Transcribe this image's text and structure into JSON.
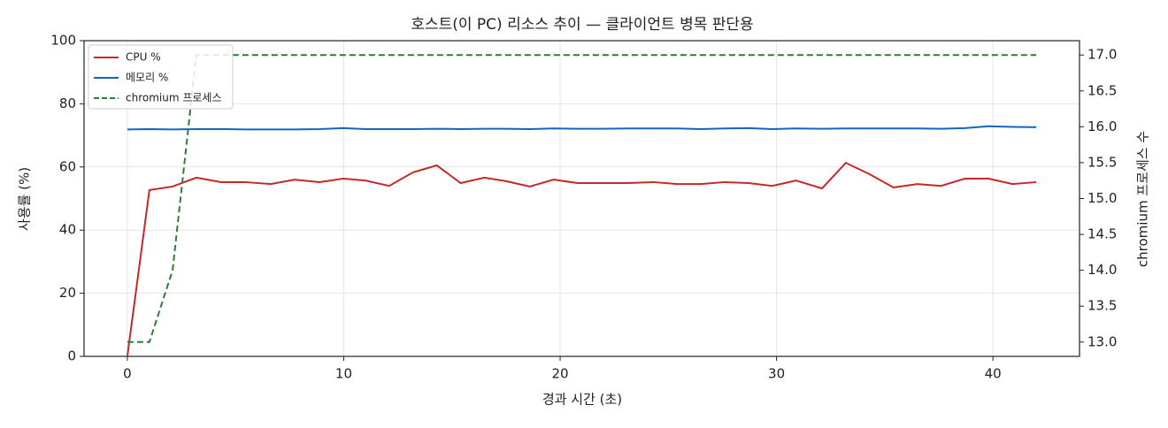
{
  "chart_data": {
    "type": "line",
    "title": "호스트(이 PC) 리소스 추이 — 클라이언트 병목 판단용",
    "x_label": "경과 시간 (초)",
    "y_label": "사용률 (%)",
    "y2_label": "chromium 프로세스 수",
    "x": [
      0,
      1.02,
      2.09,
      3.19,
      4.34,
      5.44,
      6.63,
      7.73,
      8.88,
      9.98,
      11.0,
      12.1,
      13.2,
      14.3,
      15.4,
      16.5,
      17.5,
      18.6,
      19.7,
      20.8,
      21.9,
      23.1,
      24.3,
      25.4,
      26.5,
      27.6,
      28.7,
      29.8,
      30.9,
      32.1,
      33.2,
      34.3,
      35.4,
      36.5,
      37.6,
      38.7,
      39.8,
      40.9,
      42.0
    ],
    "series": [
      {
        "name": "CPU %",
        "color": "#c62828",
        "style": "solid",
        "values": [
          0,
          52.7,
          53.8,
          56.6,
          55.2,
          55.2,
          54.6,
          56,
          55.2,
          56.3,
          55.7,
          54,
          58.3,
          60.5,
          54.9,
          56.6,
          55.5,
          53.8,
          56,
          54.9,
          54.9,
          54.9,
          55.2,
          54.6,
          54.6,
          55.2,
          54.9,
          54,
          55.7,
          53.2,
          61.3,
          57.7,
          53.5,
          54.6,
          54,
          56.3,
          56.3,
          54.6,
          55.2
        ]
      },
      {
        "name": "메모리 %",
        "color": "#1565c0",
        "style": "solid",
        "values": [
          71.9,
          72,
          71.9,
          72,
          72,
          71.9,
          71.9,
          71.9,
          72,
          72.3,
          72,
          72,
          72,
          72.1,
          72,
          72.1,
          72.1,
          72,
          72.2,
          72.1,
          72.1,
          72.2,
          72.2,
          72.2,
          72,
          72.2,
          72.3,
          72,
          72.2,
          72.1,
          72.2,
          72.2,
          72.2,
          72.2,
          72.1,
          72.3,
          72.9,
          72.7,
          72.6
        ]
      },
      {
        "name": "chromium 프로세스",
        "color": "#2e7d32",
        "style": "dashed",
        "axis": "y2",
        "values": [
          13,
          13,
          14,
          17,
          17,
          17,
          17,
          17,
          17,
          17,
          17,
          17,
          17,
          17,
          17,
          17,
          17,
          17,
          17,
          17,
          17,
          17,
          17,
          17,
          17,
          17,
          17,
          17,
          17,
          17,
          17,
          17,
          17,
          17,
          17,
          17,
          17,
          17,
          17
        ]
      }
    ],
    "xlim": [
      -2,
      44
    ],
    "xticks": [
      0,
      10,
      20,
      30,
      40
    ],
    "ylim": [
      0,
      100
    ],
    "yticks": [
      0,
      20,
      40,
      60,
      80,
      100
    ],
    "y2lim": [
      12.8,
      17.2
    ],
    "y2ticks": [
      {
        "value": 13,
        "label": "13.0"
      },
      13.5,
      {
        "value": 14,
        "label": "14.0"
      },
      14.5,
      {
        "value": 15,
        "label": "15.0"
      },
      15.5,
      {
        "value": 16,
        "label": "16.0"
      },
      16.5,
      {
        "value": 17,
        "label": "17.0"
      }
    ],
    "grid": true,
    "legend": "upper-left"
  }
}
